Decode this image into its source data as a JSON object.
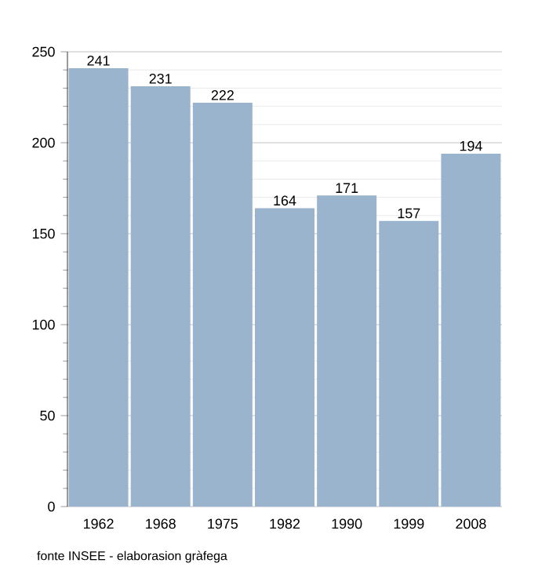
{
  "chart_data": {
    "type": "bar",
    "categories": [
      "1962",
      "1968",
      "1975",
      "1982",
      "1990",
      "1999",
      "2008"
    ],
    "values": [
      241,
      231,
      222,
      164,
      171,
      157,
      194
    ],
    "color": "#9bb4cd",
    "ylim": [
      0,
      250
    ],
    "yticks": [
      0,
      50,
      100,
      150,
      200,
      250
    ],
    "grid": "y",
    "data_labels": true,
    "annotations": [
      "fonte INSEE - elaborasion gràfega"
    ]
  }
}
